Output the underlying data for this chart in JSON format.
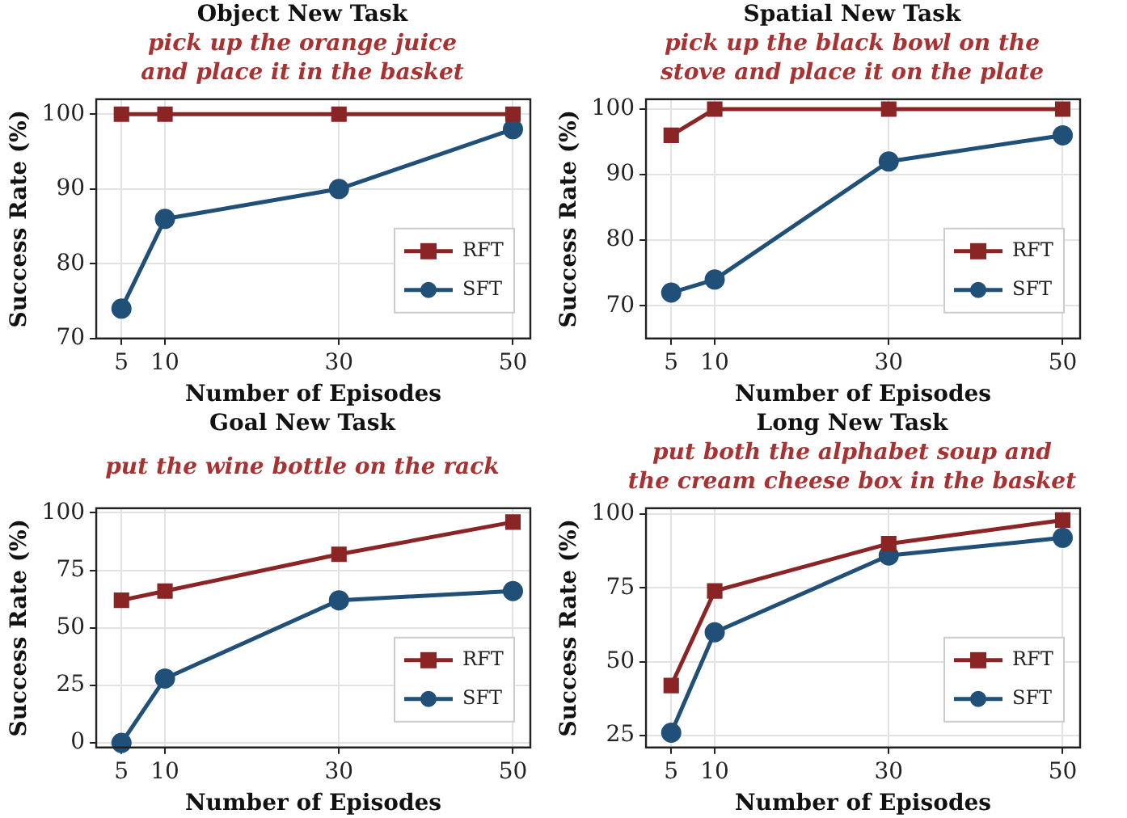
{
  "chart_data": [
    {
      "type": "line",
      "title": "Object New Task",
      "subtitle": "pick up the orange juice and place it in the basket",
      "xlabel": "Number of Episodes",
      "ylabel": "Success Rate (%)",
      "x": [
        5,
        10,
        30,
        50
      ],
      "xlim": [
        2.1,
        52
      ],
      "xticks": [
        5,
        10,
        30,
        50
      ],
      "ylim": [
        70,
        102
      ],
      "yticks": [
        70,
        80,
        90,
        100
      ],
      "grid": true,
      "legend": "bottom right",
      "line_style": "solid",
      "series": [
        {
          "name": "RFT",
          "color": "#8b2525",
          "marker": "square",
          "values": [
            100,
            100,
            100,
            100
          ]
        },
        {
          "name": "SFT",
          "color": "#204f78",
          "marker": "circle",
          "values": [
            74,
            86,
            90,
            98
          ]
        }
      ]
    },
    {
      "type": "line",
      "title": "Spatial New Task",
      "subtitle": "pick up the black bowl on the stove and place it on the plate",
      "xlabel": "Number of Episodes",
      "ylabel": "Success Rate (%)",
      "x": [
        5,
        10,
        30,
        50
      ],
      "xlim": [
        2.1,
        52
      ],
      "xticks": [
        5,
        10,
        30,
        50
      ],
      "ylim": [
        65,
        101.5
      ],
      "yticks": [
        70,
        80,
        90,
        100
      ],
      "grid": true,
      "legend": "bottom right",
      "line_style": "solid",
      "series": [
        {
          "name": "RFT",
          "color": "#8b2525",
          "marker": "square",
          "values": [
            96,
            100,
            100,
            100
          ]
        },
        {
          "name": "SFT",
          "color": "#204f78",
          "marker": "circle",
          "values": [
            72,
            74,
            92,
            96
          ]
        }
      ]
    },
    {
      "type": "line",
      "title": "Goal New Task",
      "subtitle": "put the wine bottle on the rack",
      "xlabel": "Number of Episodes",
      "ylabel": "Success Rate (%)",
      "x": [
        5,
        10,
        30,
        50
      ],
      "xlim": [
        2.1,
        52
      ],
      "xticks": [
        5,
        10,
        30,
        50
      ],
      "ylim": [
        -2,
        102
      ],
      "yticks": [
        0,
        25,
        50,
        75,
        100
      ],
      "grid": true,
      "legend": "bottom right",
      "line_style": "solid",
      "series": [
        {
          "name": "RFT",
          "color": "#8b2525",
          "marker": "square",
          "values": [
            62,
            66,
            82,
            96
          ]
        },
        {
          "name": "SFT",
          "color": "#204f78",
          "marker": "circle",
          "values": [
            0,
            28,
            62,
            66
          ]
        }
      ]
    },
    {
      "type": "line",
      "title": "Long New Task",
      "subtitle": "put both the alphabet soup and the cream cheese box in the basket",
      "xlabel": "Number of Episodes",
      "ylabel": "Success Rate (%)",
      "x": [
        5,
        10,
        30,
        50
      ],
      "xlim": [
        2.1,
        52
      ],
      "xticks": [
        5,
        10,
        30,
        50
      ],
      "ylim": [
        21,
        102
      ],
      "yticks": [
        25,
        50,
        75,
        100
      ],
      "grid": true,
      "legend": "bottom right",
      "line_style": "solid",
      "series": [
        {
          "name": "RFT",
          "color": "#8b2525",
          "marker": "square",
          "values": [
            42,
            74,
            90,
            98
          ]
        },
        {
          "name": "SFT",
          "color": "#204f78",
          "marker": "circle",
          "values": [
            26,
            60,
            86,
            92
          ]
        }
      ]
    }
  ]
}
